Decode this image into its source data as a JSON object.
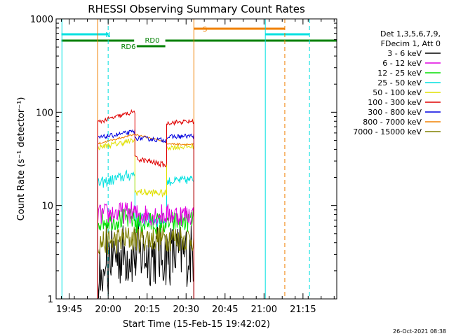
{
  "chart_data": {
    "type": "line",
    "title": "RHESSI Observing Summary Count Rates",
    "xlabel": "Start Time (15-Feb-15 19:42:02)",
    "ylabel": "Count Rate (s⁻¹ detector⁻¹)",
    "yscale": "log",
    "ylim": [
      1,
      1000
    ],
    "xlim_min": [
      -2.03,
      106
    ],
    "x_unit": "minutes after 19:42:02",
    "x_ticks": [
      {
        "at": 3,
        "label": "19:45"
      },
      {
        "at": 18,
        "label": "20:00"
      },
      {
        "at": 33,
        "label": "20:15"
      },
      {
        "at": 48,
        "label": "20:30"
      },
      {
        "at": 63,
        "label": "20:45"
      },
      {
        "at": 78,
        "label": "21:00"
      },
      {
        "at": 93,
        "label": "21:15"
      }
    ],
    "y_ticks": [
      {
        "at": 1,
        "label": "1"
      },
      {
        "at": 10,
        "label": "10"
      },
      {
        "at": 100,
        "label": "100"
      },
      {
        "at": 1000,
        "label": "1000"
      }
    ],
    "legend": {
      "position": "right",
      "header": [
        "Det 1,3,5,6,7,9,",
        "FDecim 1, Att 0"
      ],
      "entries": [
        {
          "label": "3 - 6 keV",
          "color": "#000000"
        },
        {
          "label": "6 - 12 keV",
          "color": "#e000e0"
        },
        {
          "label": "12 - 25 keV",
          "color": "#00e000"
        },
        {
          "label": "25 - 50 keV",
          "color": "#00e0e0"
        },
        {
          "label": "50 - 100 keV",
          "color": "#e0e000"
        },
        {
          "label": "100 - 300 keV",
          "color": "#e00000"
        },
        {
          "label": "300 - 800 keV",
          "color": "#0000e0"
        },
        {
          "label": "800 - 7000 keV",
          "color": "#f08000"
        },
        {
          "label": "7000 - 15000 keV",
          "color": "#808000"
        }
      ]
    },
    "series": [
      {
        "name": "3 - 6 keV",
        "color": "#000000",
        "segments": [
          {
            "x": [
              14,
              28.3
            ],
            "y": [
              3.0,
              3.0
            ],
            "noise": 0.35,
            "low": true
          },
          {
            "x": [
              28.3,
              40.5
            ],
            "y": [
              3.0,
              3.0
            ],
            "noise": 0.35
          },
          {
            "x": [
              40.5,
              51
            ],
            "y": [
              3.0,
              3.0
            ],
            "noise": 0.35
          }
        ]
      },
      {
        "name": "6 - 12 keV",
        "color": "#e000e0",
        "segments": [
          {
            "x": [
              14,
              28.3
            ],
            "y": [
              8.0,
              8.5
            ],
            "noise": 0.12
          },
          {
            "x": [
              28.3,
              40.5
            ],
            "y": [
              8.0,
              8.0
            ],
            "noise": 0.12
          },
          {
            "x": [
              40.5,
              51
            ],
            "y": [
              8.0,
              8.0
            ],
            "noise": 0.12
          }
        ]
      },
      {
        "name": "12 - 25 keV",
        "color": "#00e000",
        "segments": [
          {
            "x": [
              14,
              28.3
            ],
            "y": [
              7.0,
              7.2
            ],
            "noise": 0.12
          },
          {
            "x": [
              28.3,
              40.5
            ],
            "y": [
              6.5,
              6.5
            ],
            "noise": 0.12
          },
          {
            "x": [
              40.5,
              51
            ],
            "y": [
              6.5,
              7.0
            ],
            "noise": 0.12
          }
        ]
      },
      {
        "name": "25 - 50 keV",
        "color": "#00e0e0",
        "segments": [
          {
            "x": [
              14,
              28.3
            ],
            "y": [
              17,
              22
            ],
            "noise": 0.06
          },
          {
            "x": [
              28.3,
              40.5
            ],
            "y": [
              7.0,
              7.0
            ],
            "noise": 0.08
          },
          {
            "x": [
              40.5,
              51
            ],
            "y": [
              18,
              19
            ],
            "noise": 0.05
          }
        ]
      },
      {
        "name": "50 - 100 keV",
        "color": "#e0e000",
        "segments": [
          {
            "x": [
              14,
              28.3
            ],
            "y": [
              42,
              50
            ],
            "noise": 0.03
          },
          {
            "x": [
              28.3,
              40.5
            ],
            "y": [
              14,
              13.5
            ],
            "noise": 0.04
          },
          {
            "x": [
              40.5,
              51
            ],
            "y": [
              42,
              43
            ],
            "noise": 0.03
          }
        ]
      },
      {
        "name": "100 - 300 keV",
        "color": "#e00000",
        "segments": [
          {
            "x": [
              14,
              28.3
            ],
            "y": [
              78,
              102
            ],
            "noise": 0.025
          },
          {
            "x": [
              28.3,
              40.5
            ],
            "y": [
              32,
              27
            ],
            "noise": 0.03
          },
          {
            "x": [
              40.5,
              51
            ],
            "y": [
              77,
              80
            ],
            "noise": 0.025
          }
        ]
      },
      {
        "name": "300 - 800 keV",
        "color": "#0000e0",
        "segments": [
          {
            "x": [
              14,
              28.3
            ],
            "y": [
              53,
              62
            ],
            "noise": 0.025
          },
          {
            "x": [
              28.3,
              40.5
            ],
            "y": [
              53,
              50
            ],
            "noise": 0.025
          },
          {
            "x": [
              40.5,
              51
            ],
            "y": [
              54,
              56
            ],
            "noise": 0.025
          }
        ]
      },
      {
        "name": "800 - 7000 keV",
        "color": "#f08000",
        "segments": [
          {
            "x": [
              14,
              28.3
            ],
            "y": [
              46,
              58
            ],
            "noise": 0.01
          },
          {
            "x": [
              28.3,
              40.5
            ],
            "y": [
              58,
              48
            ],
            "noise": 0.01
          },
          {
            "x": [
              40.5,
              51
            ],
            "y": [
              46,
              45
            ],
            "noise": 0.01
          }
        ]
      },
      {
        "name": "7000 - 15000 keV",
        "color": "#808000",
        "segments": [
          {
            "x": [
              14,
              28.3
            ],
            "y": [
              4.0,
              4.5
            ],
            "noise": 0.15
          },
          {
            "x": [
              28.3,
              40.5
            ],
            "y": [
              4.5,
              4.5
            ],
            "noise": 0.15
          },
          {
            "x": [
              40.5,
              51
            ],
            "y": [
              4.5,
              4.5
            ],
            "noise": 0.15
          }
        ]
      }
    ],
    "vertical_lines": [
      {
        "x": 0.2,
        "color": "#00e0e0",
        "style": "solid"
      },
      {
        "x": 14,
        "color": "#f08000",
        "style": "solid"
      },
      {
        "x": 18,
        "color": "#00e0e0",
        "style": "dashed"
      },
      {
        "x": 51,
        "color": "#f08000",
        "style": "solid"
      },
      {
        "x": 78.5,
        "color": "#00e0e0",
        "style": "solid"
      },
      {
        "x": 86,
        "color": "#f08000",
        "style": "dashed"
      },
      {
        "x": 95.5,
        "color": "#00e0e0",
        "style": "dashed"
      }
    ],
    "flag_bars": [
      {
        "label": "N",
        "color": "#00e0e0",
        "level": "top",
        "ranges": [
          [
            0,
            18
          ],
          [
            78.5,
            95.5
          ]
        ]
      },
      {
        "label": "S",
        "color": "#f08000",
        "level": "high",
        "ranges": [
          [
            51,
            86
          ]
        ]
      },
      {
        "label": "RD0",
        "color": "#008000",
        "level": "mid",
        "ranges": [
          [
            0,
            28
          ],
          [
            40,
            106
          ]
        ]
      },
      {
        "label": "RD6",
        "color": "#008000",
        "level": "low",
        "ranges": [
          [
            29,
            40
          ]
        ]
      }
    ]
  },
  "footer": {
    "timestamp": "26-Oct-2021 08:38"
  }
}
